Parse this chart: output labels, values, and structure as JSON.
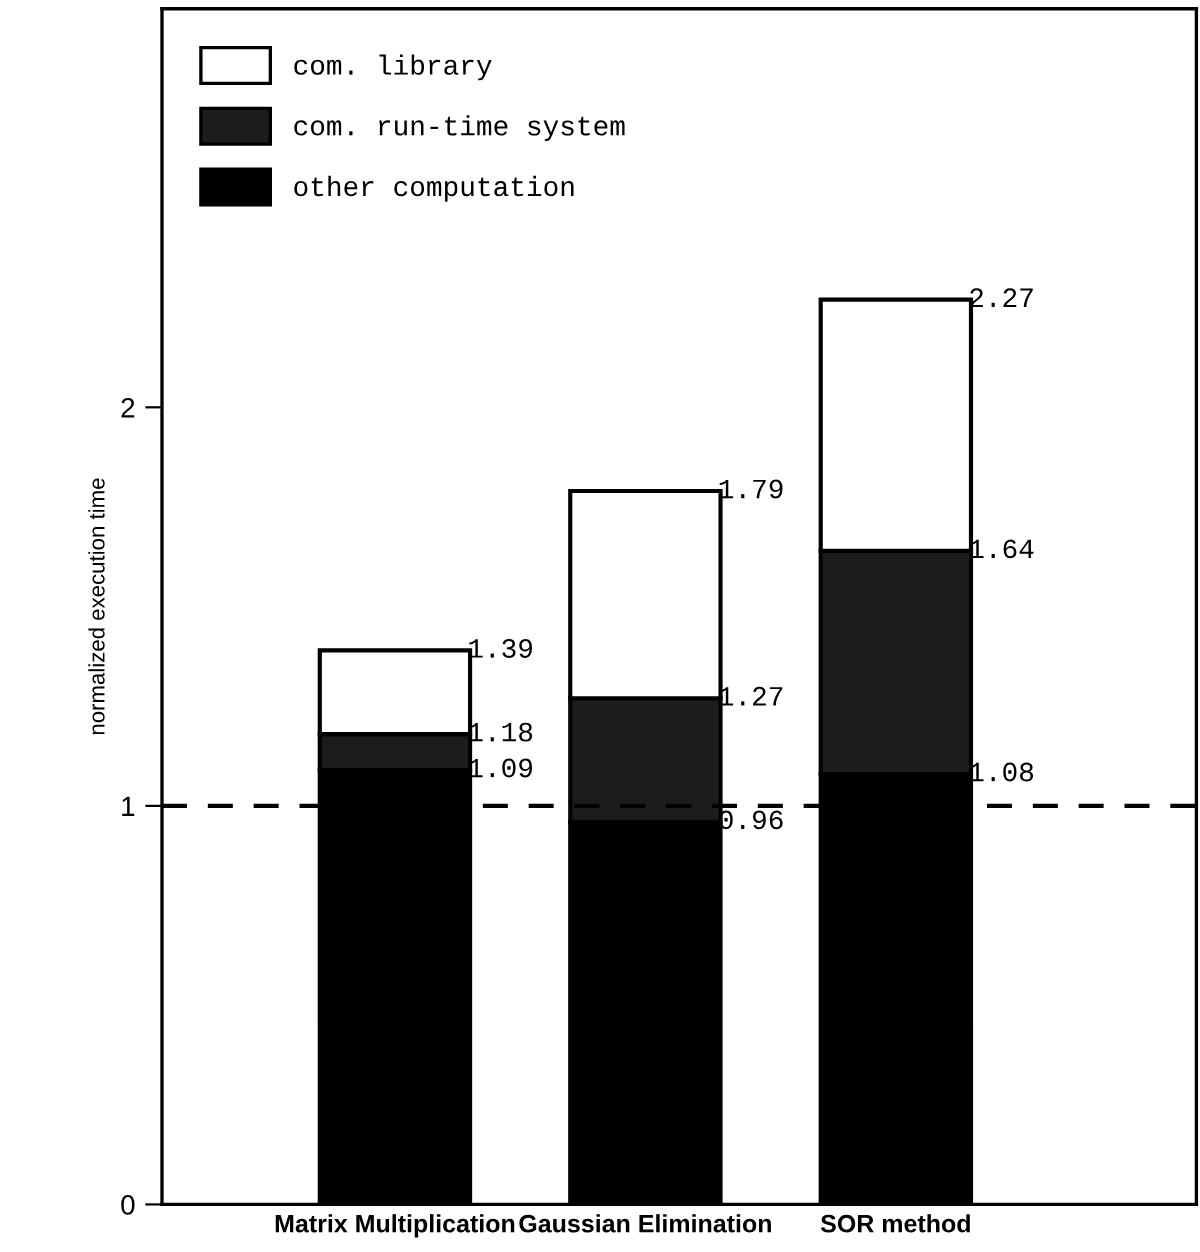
{
  "chart_data": {
    "type": "bar",
    "stacked": true,
    "ylabel": "normalized execution time",
    "categories": [
      "Matrix Multiplication",
      "Gaussian Elimination",
      "SOR method"
    ],
    "series": [
      {
        "name": "other computation",
        "color": "#000000",
        "values": [
          1.09,
          0.96,
          1.08
        ]
      },
      {
        "name": "com. run-time system",
        "color": "#1c1c1c",
        "values": [
          0.09,
          0.31,
          0.56
        ]
      },
      {
        "name": "com. library",
        "color": "#ffffff",
        "values": [
          0.21,
          0.52,
          0.63
        ]
      }
    ],
    "annotations": [
      {
        "text": "1.09",
        "x": "Matrix Multiplication",
        "y": 1.09
      },
      {
        "text": "1.18",
        "x": "Matrix Multiplication",
        "y": 1.18
      },
      {
        "text": "1.39",
        "x": "Matrix Multiplication",
        "y": 1.39
      },
      {
        "text": "0.96",
        "x": "Gaussian Elimination",
        "y": 0.96
      },
      {
        "text": "1.27",
        "x": "Gaussian Elimination",
        "y": 1.27
      },
      {
        "text": "1.79",
        "x": "Gaussian Elimination",
        "y": 1.79
      },
      {
        "text": "1.08",
        "x": "SOR method",
        "y": 1.08
      },
      {
        "text": "1.64",
        "x": "SOR method",
        "y": 1.64
      },
      {
        "text": "2.27",
        "x": "SOR method",
        "y": 2.27
      }
    ],
    "ylim": [
      0,
      3.0
    ],
    "yticks": [
      0,
      1,
      2
    ],
    "ref_lines": [
      {
        "axis": "y",
        "value": 1,
        "line_style": "dashed",
        "color": "#000000"
      }
    ],
    "legend": "top left",
    "grid": false
  }
}
